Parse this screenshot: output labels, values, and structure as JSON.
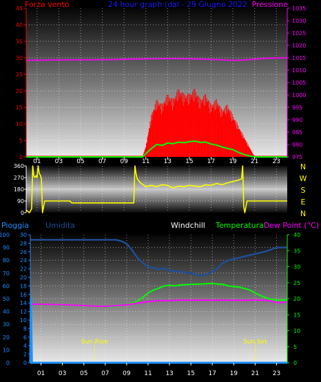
{
  "chart_data": [
    {
      "type": "line",
      "title": "24 hour graph (dal - 29 Giugno 2022",
      "left_axis": {
        "label": "Forza vento",
        "ylim": [
          0,
          45
        ],
        "ticks": [
          "0",
          "5",
          "10",
          "15",
          "20",
          "25",
          "30",
          "35",
          "40",
          "45"
        ],
        "color": "#ff0000"
      },
      "right_axis": {
        "label": "Pressione",
        "ylim": [
          975,
          1035
        ],
        "ticks": [
          "975",
          "980",
          "985",
          "990",
          "995",
          "1000",
          "1005",
          "1010",
          "1015",
          "1020",
          "1025",
          "1030",
          "1035"
        ],
        "color": "#ff00ff"
      },
      "x_ticks": [
        "01",
        "03",
        "05",
        "07",
        "09",
        "11",
        "13",
        "15",
        "17",
        "19",
        "21",
        "23"
      ],
      "xlim": [
        0,
        24
      ],
      "series": [
        {
          "color": "#ff00ff",
          "axis": "right",
          "x": [
            0,
            2,
            4,
            6,
            8,
            10,
            12,
            14,
            16,
            18,
            19,
            20,
            22,
            24
          ],
          "y": [
            1014.0,
            1014.1,
            1014.2,
            1014.2,
            1014.3,
            1014.5,
            1014.6,
            1014.7,
            1014.5,
            1014.2,
            1014.0,
            1014.1,
            1014.8,
            1015.0
          ]
        },
        {
          "color": "#ff0000",
          "axis": "left",
          "x": [
            0,
            10.7,
            11.0,
            11.5,
            12,
            12.5,
            13,
            13.5,
            14,
            14.5,
            15,
            15.5,
            16,
            16.5,
            17,
            17.5,
            18,
            18.5,
            19,
            19.5,
            20,
            20.5,
            21,
            24
          ],
          "y": [
            0,
            0,
            2,
            8,
            11,
            10,
            12,
            11,
            13,
            12,
            12,
            13,
            11,
            12,
            10,
            11,
            9,
            10,
            8,
            6,
            4,
            2,
            0,
            0
          ]
        },
        {
          "color": "#00ff00",
          "axis": "left",
          "x": [
            0,
            10.7,
            11.0,
            11.5,
            12,
            12.5,
            13,
            13.5,
            14,
            14.5,
            15,
            15.5,
            16,
            16.5,
            17,
            17.5,
            18,
            18.5,
            19,
            19.5,
            20,
            20.5,
            21,
            24
          ],
          "y": [
            0,
            0,
            1.0,
            2.5,
            3.8,
            3.5,
            4.2,
            4.0,
            4.5,
            4.3,
            4.6,
            4.8,
            4.4,
            4.5,
            3.9,
            3.6,
            3.0,
            2.6,
            2.2,
            1.4,
            0.8,
            0.3,
            0,
            0
          ]
        }
      ]
    },
    {
      "type": "line",
      "left_axis": {
        "ylim": [
          0,
          360
        ],
        "ticks": [
          "0",
          "90",
          "180",
          "270",
          "360"
        ]
      },
      "right_labels": [
        "N",
        "W",
        "S",
        "E",
        "N"
      ],
      "xlim": [
        0,
        24
      ],
      "series": [
        {
          "color": "#ffff00",
          "x": [
            0,
            0.3,
            0.5,
            0.6,
            0.7,
            0.8,
            0.9,
            1.0,
            1.1,
            1.2,
            1.3,
            1.4,
            1.5,
            1.7,
            2,
            3,
            4,
            4.2,
            5,
            6,
            7,
            8,
            9,
            9.5,
            9.9,
            10.0,
            10.1,
            10.2,
            10.5,
            11,
            11.5,
            12,
            12.5,
            13,
            13.5,
            14,
            14.5,
            15,
            15.5,
            16,
            16.5,
            17,
            17.5,
            18,
            18.5,
            19,
            19.5,
            19.8,
            19.9,
            20.0,
            20.1,
            20.3,
            21,
            22,
            23,
            24
          ],
          "y": [
            20,
            0,
            30,
            360,
            280,
            270,
            285,
            270,
            360,
            300,
            290,
            260,
            0,
            90,
            90,
            90,
            90,
            75,
            75,
            75,
            75,
            75,
            75,
            75,
            75,
            360,
            300,
            260,
            230,
            200,
            210,
            200,
            215,
            210,
            190,
            205,
            200,
            210,
            205,
            200,
            215,
            210,
            225,
            215,
            230,
            240,
            250,
            260,
            360,
            50,
            0,
            90,
            90,
            90,
            90,
            90
          ]
        }
      ]
    },
    {
      "type": "line",
      "labels": {
        "pioggia": "Pioggia",
        "umidita": "Umidita",
        "windchill": "Windchill",
        "temperatura": "Temperatura",
        "dewpoint": "Dew Point (°C)"
      },
      "left_axis_humidity": {
        "ylim": [
          0,
          100
        ],
        "ticks": [
          "0",
          "10",
          "20",
          "30",
          "40",
          "50",
          "60",
          "70",
          "80",
          "90",
          "100"
        ],
        "color": "#1e90ff"
      },
      "left_axis_rain": {
        "ylim": [
          0,
          30
        ],
        "ticks": [
          "0",
          "2",
          "4",
          "6",
          "8",
          "10",
          "12",
          "14",
          "16",
          "18",
          "20",
          "22",
          "24",
          "26",
          "28",
          "30"
        ],
        "color": "#1e90ff"
      },
      "right_axis": {
        "ylim": [
          0,
          40
        ],
        "ticks": [
          "0",
          "5",
          "10",
          "15",
          "20",
          "25",
          "30",
          "35",
          "40"
        ],
        "color": "#00ff00"
      },
      "x_ticks": [
        "01",
        "03",
        "05",
        "07",
        "09",
        "11",
        "13",
        "15",
        "17",
        "19",
        "21",
        "23"
      ],
      "xlim": [
        0,
        24
      ],
      "annotations": [
        {
          "text": "Sun Rise",
          "x": 6.0
        },
        {
          "text": "Sun Set",
          "x": 21.0
        }
      ],
      "series": [
        {
          "name": "Umidita",
          "color": "#1e4f99",
          "axis": "humidity",
          "x": [
            0,
            1,
            2,
            3,
            4,
            5,
            6,
            7,
            8,
            8.5,
            9,
            9.5,
            10,
            10.5,
            11,
            11.5,
            12,
            12.5,
            13,
            14,
            15,
            15.5,
            16,
            16.5,
            17,
            17.5,
            18,
            18.5,
            19,
            19.5,
            20,
            21,
            22,
            23,
            24
          ],
          "y": [
            96,
            96,
            96,
            96,
            96,
            96,
            96,
            96,
            96,
            95,
            93,
            88,
            82,
            78,
            75,
            74,
            73,
            74,
            72,
            71,
            70,
            69,
            68,
            69,
            71,
            74,
            78,
            80,
            81,
            82,
            83,
            85,
            87,
            90,
            90
          ]
        },
        {
          "name": "Temperatura",
          "color": "#00ff00",
          "axis": "right",
          "x": [
            0,
            1,
            2,
            3,
            4,
            5,
            6,
            7,
            8,
            9,
            9.5,
            10,
            10.5,
            11,
            11.5,
            12,
            12.5,
            13,
            13.5,
            14,
            15,
            16,
            17,
            17.5,
            18,
            18.5,
            19,
            19.5,
            20,
            20.5,
            21,
            21.5,
            22,
            22.5,
            23,
            24
          ],
          "y": [
            18.3,
            18.2,
            18.2,
            18.0,
            18.0,
            17.8,
            17.7,
            17.5,
            17.6,
            18.2,
            18.6,
            19.3,
            20.4,
            21.8,
            22.7,
            23.3,
            24.0,
            24.2,
            24.0,
            24.3,
            24.5,
            24.6,
            24.8,
            24.6,
            24.5,
            24.0,
            23.8,
            23.6,
            23.2,
            22.7,
            21.8,
            21.0,
            20.3,
            19.8,
            19.6,
            19.6
          ]
        },
        {
          "name": "Dew Point (°C)",
          "color": "#ff00ff",
          "axis": "right",
          "x": [
            0,
            2,
            4,
            6,
            7,
            8,
            9,
            10,
            11,
            12,
            13,
            14,
            15,
            16,
            17,
            18,
            19,
            20,
            21,
            22,
            22.5,
            23,
            24
          ],
          "y": [
            18.3,
            18.2,
            18.0,
            17.7,
            17.6,
            17.8,
            18.1,
            18.6,
            19.1,
            19.4,
            19.4,
            19.6,
            19.5,
            19.6,
            19.5,
            19.6,
            19.5,
            19.5,
            19.6,
            19.5,
            19.2,
            18.8,
            18.9
          ]
        },
        {
          "name": "Pioggia",
          "color": "#1e90ff",
          "axis": "rain",
          "x": [
            0,
            0.05,
            0.15,
            24
          ],
          "y": [
            0,
            15,
            0,
            0
          ]
        }
      ]
    }
  ]
}
